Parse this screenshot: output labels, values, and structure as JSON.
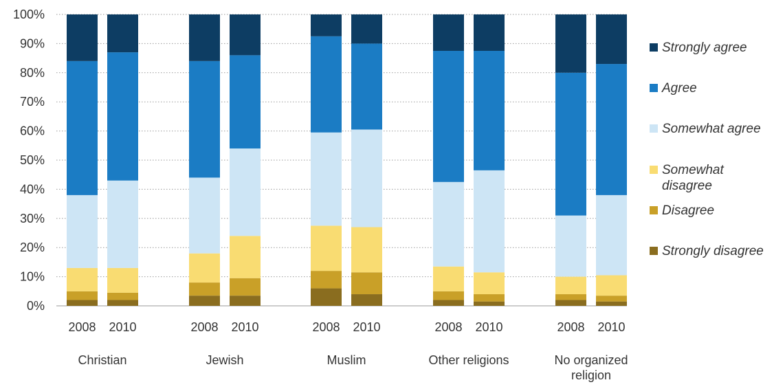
{
  "chart_data": {
    "type": "bar",
    "stacked": true,
    "percent_stacked": true,
    "y_ticks": [
      "0%",
      "10%",
      "20%",
      "30%",
      "40%",
      "50%",
      "60%",
      "70%",
      "80%",
      "90%",
      "100%"
    ],
    "ylim": [
      0,
      100
    ],
    "grid": "horizontal dotted",
    "legend_position": "right",
    "groups": [
      {
        "name_lines": [
          "Christian"
        ],
        "years": [
          "2008",
          "2010"
        ]
      },
      {
        "name_lines": [
          "Jewish"
        ],
        "years": [
          "2008",
          "2010"
        ]
      },
      {
        "name_lines": [
          "Muslim"
        ],
        "years": [
          "2008",
          "2010"
        ]
      },
      {
        "name_lines": [
          "Other religions"
        ],
        "years": [
          "2008",
          "2010"
        ]
      },
      {
        "name_lines": [
          "No organized",
          "religion"
        ],
        "years": [
          "2008",
          "2010"
        ]
      }
    ],
    "categories": [
      "Christian 2008",
      "Christian 2010",
      "Jewish 2008",
      "Jewish 2010",
      "Muslim 2008",
      "Muslim 2010",
      "Other religions 2008",
      "Other religions 2010",
      "No organized religion 2008",
      "No organized religion 2010"
    ],
    "series": [
      {
        "name": "Strongly disagree",
        "color": "#8a6d1f",
        "values": [
          2,
          2,
          3.5,
          3.5,
          6,
          4,
          2,
          1.5,
          2,
          1.5
        ]
      },
      {
        "name": "Disagree",
        "color": "#c9a028",
        "values": [
          3,
          2.5,
          4.5,
          6,
          6,
          7.5,
          3,
          2.5,
          2,
          2
        ]
      },
      {
        "name": "Somewhat disagree",
        "color": "#f9dc72",
        "values": [
          8,
          8.5,
          10,
          14.5,
          15.5,
          15.5,
          8.5,
          7.5,
          6,
          7
        ]
      },
      {
        "name": "Somewhat agree",
        "color": "#cde5f5",
        "values": [
          25,
          30,
          26,
          30,
          32,
          33.5,
          29,
          35,
          21,
          27.5
        ]
      },
      {
        "name": "Agree",
        "color": "#1b7cc4",
        "values": [
          46,
          44,
          40,
          32,
          33,
          29.5,
          45,
          41,
          49,
          45
        ]
      },
      {
        "name": "Strongly agree",
        "color": "#0d3d63",
        "values": [
          16,
          13,
          16,
          14,
          7.5,
          10,
          12.5,
          12.5,
          20,
          17
        ]
      }
    ],
    "legend": [
      {
        "lines": [
          "Strongly agree"
        ],
        "color": "#0d3d63"
      },
      {
        "lines": [
          "Agree"
        ],
        "color": "#1b7cc4"
      },
      {
        "lines": [
          "Somewhat agree"
        ],
        "color": "#cde5f5"
      },
      {
        "lines": [
          "Somewhat",
          "disagree"
        ],
        "color": "#f9dc72"
      },
      {
        "lines": [
          "Disagree"
        ],
        "color": "#c9a028"
      },
      {
        "lines": [
          "Strongly disagree"
        ],
        "color": "#8a6d1f"
      }
    ]
  }
}
